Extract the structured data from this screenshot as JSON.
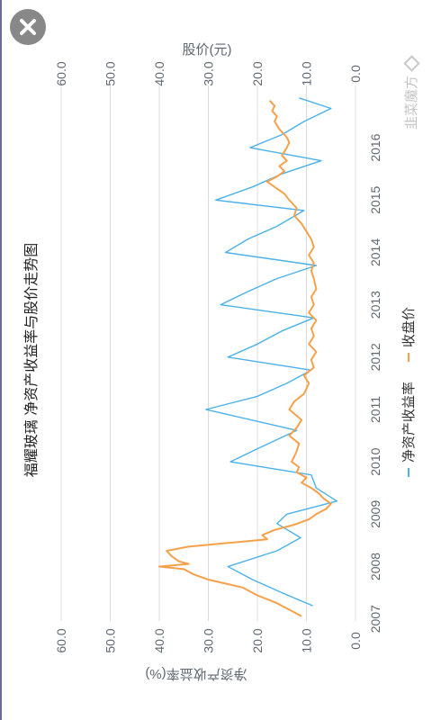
{
  "close_button": {
    "icon": "close-icon",
    "color": "#888888"
  },
  "watermark": {
    "text": "韭菜魔方",
    "icon": "diamond-icon",
    "color": "#c8c8c8"
  },
  "colors": {
    "roe": "#4bb1e8",
    "price": "#f5a14b",
    "grid": "#dcdcdc",
    "axis_text": "#5f6770"
  },
  "chart_data": {
    "type": "line",
    "title": "福耀玻璃 净资产收益率与股价走势图",
    "x": {
      "ticks": [
        "2007",
        "2008",
        "2009",
        "2010",
        "2011",
        "2012",
        "2013",
        "2014",
        "2015",
        "2016"
      ],
      "range": [
        2006.96,
        2016.93
      ]
    },
    "y_left": {
      "label": "净资产收益率(%)",
      "ticks": [
        "0.0",
        "10.0",
        "20.0",
        "30.0",
        "40.0",
        "50.0",
        "60.0"
      ],
      "range": [
        0,
        60
      ]
    },
    "y_right": {
      "label": "股价(元)",
      "ticks": [
        "0.0",
        "10.0",
        "20.0",
        "30.0",
        "40.0",
        "50.0",
        "60.0"
      ],
      "range": [
        0,
        60
      ]
    },
    "legend": [
      "净资产收益率",
      "收盘价"
    ],
    "grid": true,
    "series": [
      {
        "name": "净资产收益率",
        "axis": "left",
        "color": "#4bb1e8",
        "points": [
          [
            2007.25,
            8.7
          ],
          [
            2007.5,
            15.0
          ],
          [
            2007.75,
            21.0
          ],
          [
            2008.0,
            26.0
          ],
          [
            2008.3,
            16.0
          ],
          [
            2008.55,
            11.2
          ],
          [
            2008.82,
            16.0
          ],
          [
            2009.0,
            14.0
          ],
          [
            2009.25,
            3.8
          ],
          [
            2009.5,
            8.0
          ],
          [
            2009.75,
            9.0
          ],
          [
            2010.0,
            25.5
          ],
          [
            2010.25,
            20.0
          ],
          [
            2010.6,
            12.0
          ],
          [
            2011.0,
            30.5
          ],
          [
            2011.25,
            20.0
          ],
          [
            2011.5,
            14.0
          ],
          [
            2011.75,
            9.0
          ],
          [
            2012.0,
            26.0
          ],
          [
            2012.25,
            20.0
          ],
          [
            2012.5,
            15.0
          ],
          [
            2012.75,
            8.5
          ],
          [
            2013.0,
            27.5
          ],
          [
            2013.25,
            22.0
          ],
          [
            2013.5,
            16.0
          ],
          [
            2013.75,
            8.0
          ],
          [
            2014.0,
            26.5
          ],
          [
            2014.25,
            22.0
          ],
          [
            2014.5,
            16.0
          ],
          [
            2014.8,
            10.5
          ],
          [
            2015.0,
            28.5
          ],
          [
            2015.25,
            21.0
          ],
          [
            2015.5,
            15.0
          ],
          [
            2015.75,
            7.0
          ],
          [
            2016.0,
            21.5
          ],
          [
            2016.25,
            15.0
          ],
          [
            2016.5,
            10.5
          ],
          [
            2016.75,
            5.0
          ],
          [
            2016.95,
            11.5
          ]
        ]
      },
      {
        "name": "收盘价",
        "axis": "right",
        "color": "#f5a14b",
        "points": [
          [
            2007.05,
            11.0
          ],
          [
            2007.15,
            13.0
          ],
          [
            2007.3,
            16.0
          ],
          [
            2007.45,
            20.0
          ],
          [
            2007.6,
            23.0
          ],
          [
            2007.75,
            30.0
          ],
          [
            2007.85,
            33.0
          ],
          [
            2007.95,
            35.0
          ],
          [
            2008.0,
            40.0
          ],
          [
            2008.05,
            34.0
          ],
          [
            2008.1,
            36.0
          ],
          [
            2008.2,
            37.5
          ],
          [
            2008.3,
            38.5
          ],
          [
            2008.38,
            34.0
          ],
          [
            2008.45,
            26.0
          ],
          [
            2008.52,
            18.0
          ],
          [
            2008.6,
            19.0
          ],
          [
            2008.7,
            16.5
          ],
          [
            2008.8,
            12.5
          ],
          [
            2008.9,
            9.5
          ],
          [
            2009.0,
            8.0
          ],
          [
            2009.1,
            6.0
          ],
          [
            2009.2,
            5.0
          ],
          [
            2009.3,
            6.5
          ],
          [
            2009.4,
            7.5
          ],
          [
            2009.5,
            9.0
          ],
          [
            2009.6,
            11.0
          ],
          [
            2009.7,
            10.0
          ],
          [
            2009.8,
            12.0
          ],
          [
            2009.9,
            11.5
          ],
          [
            2010.0,
            13.0
          ],
          [
            2010.1,
            12.5
          ],
          [
            2010.2,
            12.0
          ],
          [
            2010.35,
            11.5
          ],
          [
            2010.5,
            13.5
          ],
          [
            2010.65,
            12.0
          ],
          [
            2010.8,
            11.0
          ],
          [
            2011.0,
            13.5
          ],
          [
            2011.15,
            12.5
          ],
          [
            2011.3,
            10.5
          ],
          [
            2011.5,
            9.5
          ],
          [
            2011.65,
            10.5
          ],
          [
            2011.8,
            8.5
          ],
          [
            2011.95,
            9.0
          ],
          [
            2012.1,
            8.0
          ],
          [
            2012.25,
            9.5
          ],
          [
            2012.4,
            8.5
          ],
          [
            2012.55,
            9.0
          ],
          [
            2012.7,
            8.0
          ],
          [
            2012.85,
            9.5
          ],
          [
            2013.0,
            8.5
          ],
          [
            2013.15,
            9.0
          ],
          [
            2013.3,
            8.0
          ],
          [
            2013.5,
            8.5
          ],
          [
            2013.65,
            9.0
          ],
          [
            2013.8,
            8.5
          ],
          [
            2013.95,
            9.5
          ],
          [
            2014.1,
            8.5
          ],
          [
            2014.25,
            9.0
          ],
          [
            2014.4,
            10.0
          ],
          [
            2014.55,
            11.0
          ],
          [
            2014.7,
            12.5
          ],
          [
            2014.85,
            12.0
          ],
          [
            2015.0,
            13.5
          ],
          [
            2015.12,
            14.5
          ],
          [
            2015.25,
            16.5
          ],
          [
            2015.35,
            18.0
          ],
          [
            2015.45,
            16.0
          ],
          [
            2015.55,
            14.5
          ],
          [
            2015.65,
            15.5
          ],
          [
            2015.75,
            14.0
          ],
          [
            2015.85,
            15.0
          ],
          [
            2016.0,
            14.0
          ],
          [
            2016.1,
            13.5
          ],
          [
            2016.2,
            14.0
          ],
          [
            2016.35,
            15.5
          ],
          [
            2016.5,
            16.5
          ],
          [
            2016.6,
            16.0
          ],
          [
            2016.7,
            17.0
          ],
          [
            2016.8,
            16.5
          ],
          [
            2016.9,
            17.5
          ]
        ]
      }
    ]
  }
}
